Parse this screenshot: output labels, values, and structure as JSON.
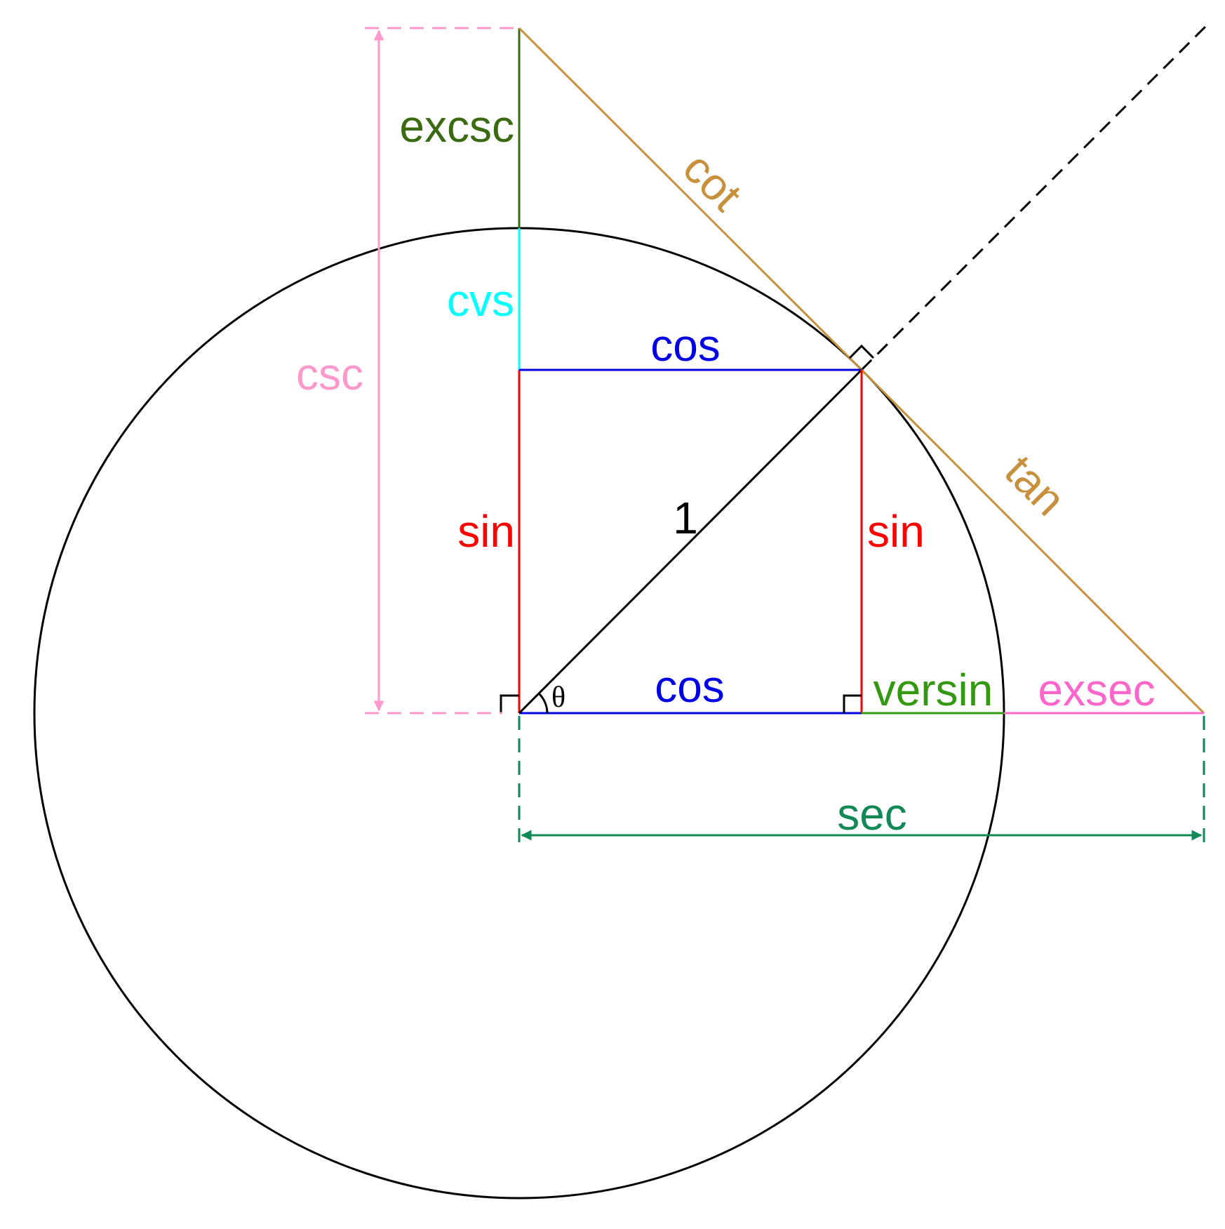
{
  "labels": {
    "excsc": "excsc",
    "cot": "cot",
    "cvs": "cvs",
    "cos_top": "cos",
    "csc": "csc",
    "sin_left": "sin",
    "one": "1",
    "sin_right": "sin",
    "tan": "tan",
    "theta": "θ",
    "cos_bottom": "cos",
    "versin": "versin",
    "exsec": "exsec",
    "sec": "sec"
  },
  "colors": {
    "circle": "#000000",
    "radius": "#000000",
    "sin": "#ff0000",
    "cos": "#0000e6",
    "tan_cot": "#c8903c",
    "excsc": "#3a6b12",
    "cvs": "#00ffff",
    "csc": "#ff99cc",
    "versin": "#339911",
    "exsec": "#ff66cc",
    "sec": "#118855",
    "extension": "#000000"
  }
}
